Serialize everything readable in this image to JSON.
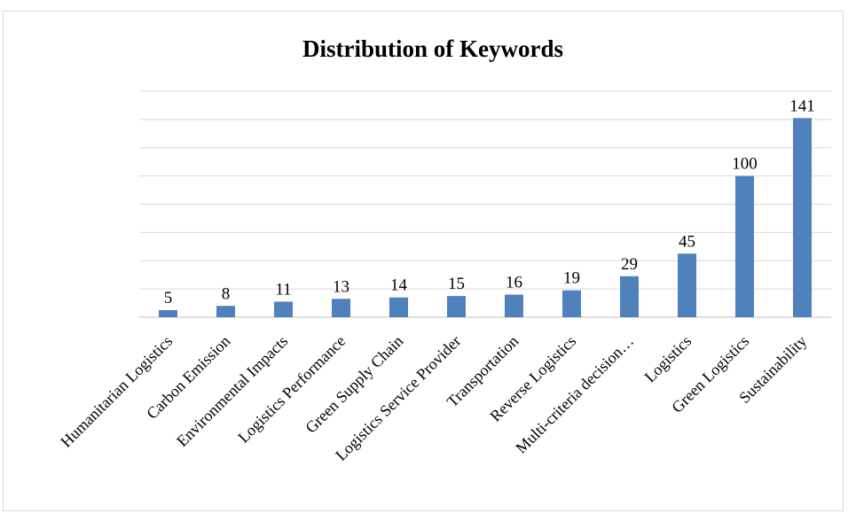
{
  "chart_data": {
    "type": "bar",
    "title": "Distribution of Keywords",
    "categories": [
      "Humanitarian Logistics",
      "Carbon Emission",
      "Environmental Impacts",
      "Logistics Performance",
      "Green Supply Chain",
      "Logistics Service Provider",
      "Transportation",
      "Reverse Logistics",
      "Multi-criteria decision…",
      "Logistics",
      "Green Logistics",
      "Sustainability"
    ],
    "values": [
      5,
      8,
      11,
      13,
      14,
      15,
      16,
      19,
      29,
      45,
      100,
      141
    ],
    "ylim": [
      0,
      160
    ],
    "grid": true,
    "colors": {
      "bar": "#4f81bd",
      "grid": "#d9d9d9",
      "axis": "#bfbfbf"
    }
  }
}
